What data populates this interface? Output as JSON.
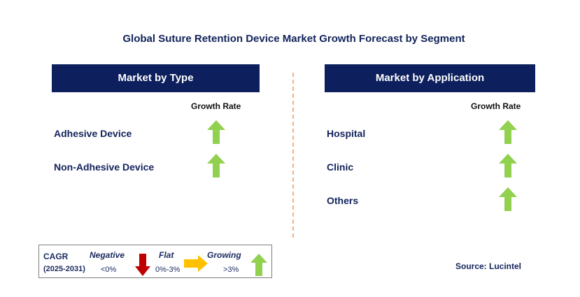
{
  "title": "Global Suture Retention Device Market Growth Forecast by Segment",
  "left_panel": {
    "header": "Market by Type",
    "growth_label": "Growth Rate",
    "items": [
      {
        "label": "Adhesive Device",
        "trend": "growing"
      },
      {
        "label": "Non-Adhesive Device",
        "trend": "growing"
      }
    ]
  },
  "right_panel": {
    "header": "Market by Application",
    "growth_label": "Growth Rate",
    "items": [
      {
        "label": "Hospital",
        "trend": "growing"
      },
      {
        "label": "Clinic",
        "trend": "growing"
      },
      {
        "label": "Others",
        "trend": "growing"
      }
    ]
  },
  "legend": {
    "cagr_label": "CAGR",
    "period": "(2025-2031)",
    "negative": {
      "label": "Negative",
      "range": "<0%",
      "icon": "down-arrow-icon",
      "color": "#c00000"
    },
    "flat": {
      "label": "Flat",
      "range": "0%-3%",
      "icon": "right-arrow-icon",
      "color": "#ffc000"
    },
    "growing": {
      "label": "Growing",
      "range": ">3%",
      "icon": "up-arrow-icon",
      "color": "#92d050"
    }
  },
  "source": "Source: Lucintel",
  "colors": {
    "header_bg": "#0d1f5c",
    "title_text": "#12235a",
    "up_arrow": "#92d050",
    "down_arrow": "#c00000",
    "flat_arrow": "#ffc000",
    "divider": "#f4b183"
  }
}
